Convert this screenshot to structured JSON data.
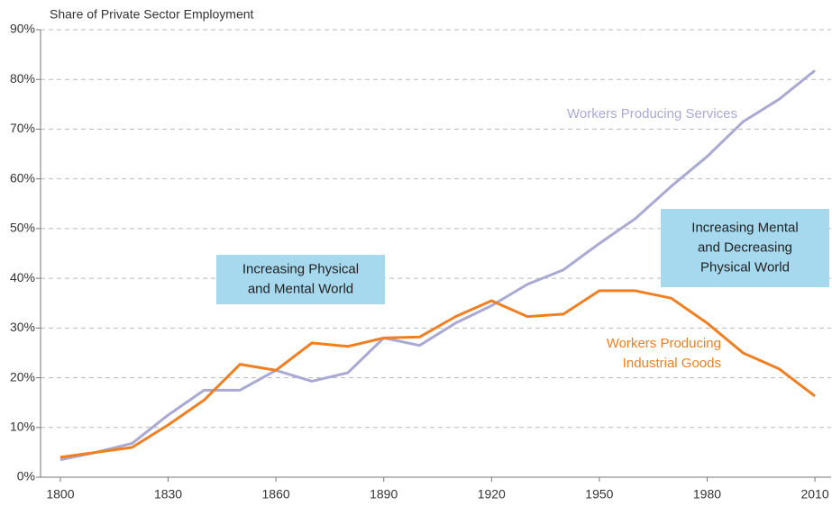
{
  "chart_data": {
    "type": "line",
    "title": "Share of Private Sector Employment",
    "x": [
      1800,
      1810,
      1820,
      1830,
      1840,
      1850,
      1860,
      1870,
      1880,
      1890,
      1900,
      1910,
      1920,
      1930,
      1940,
      1950,
      1960,
      1970,
      1980,
      1990,
      2000,
      2010
    ],
    "series": [
      {
        "name": "Workers Producing Services",
        "color": "#a9a9d4",
        "values": [
          3.5,
          5,
          6.8,
          12.5,
          17.5,
          17.5,
          21.5,
          19.3,
          21,
          28,
          26.5,
          31,
          34.5,
          38.8,
          41.7,
          47,
          52,
          58.5,
          64.5,
          71.5,
          76,
          81.8
        ]
      },
      {
        "name": "Workers Producing Industrial Goods",
        "color": "#f07f22",
        "values": [
          4,
          5,
          6,
          10.5,
          15.5,
          22.7,
          21.5,
          27,
          26.3,
          28,
          28.2,
          32.3,
          35.5,
          32.3,
          32.8,
          37.5,
          37.5,
          36,
          31,
          25,
          21.8,
          16.3
        ]
      }
    ],
    "xlim": [
      1794.5,
      2014.5
    ],
    "xticks": [
      1800,
      1830,
      1860,
      1890,
      1920,
      1950,
      1980,
      2010
    ],
    "ylim": [
      0,
      90
    ],
    "yticks": [
      {
        "value": 0,
        "label": "0%"
      },
      {
        "value": 10,
        "label": "10%"
      },
      {
        "value": 20,
        "label": "20%"
      },
      {
        "value": 30,
        "label": "30%"
      },
      {
        "value": 40,
        "label": "40%"
      },
      {
        "value": 50,
        "label": "50%"
      },
      {
        "value": 60,
        "label": "60%"
      },
      {
        "value": 70,
        "label": "70%"
      },
      {
        "value": 80,
        "label": "80%"
      },
      {
        "value": 90,
        "label": "90%"
      }
    ],
    "grid": true,
    "annotations": [
      {
        "lines": [
          "Increasing Physical",
          "and Mental World"
        ],
        "background": "#a6d8ee"
      },
      {
        "lines": [
          "Increasing Mental",
          "and Decreasing",
          "Physical World"
        ],
        "background": "#a6d8ee"
      }
    ]
  }
}
